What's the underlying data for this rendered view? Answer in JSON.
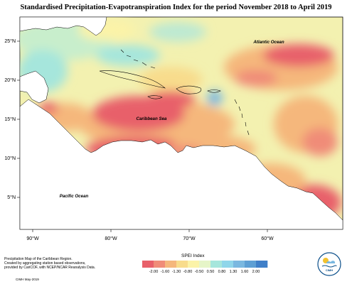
{
  "title": "Standardised Precipitation-Evapotranspiration Index for the period November 2018 to April 2019",
  "axes": {
    "longitude_ticks": [
      "90°W",
      "80°W",
      "70°W",
      "60°W"
    ],
    "latitude_ticks": [
      "25°N",
      "20°N",
      "15°N",
      "10°N",
      "5°N"
    ]
  },
  "ocean_labels": {
    "atlantic": "Atlantic Ocean",
    "caribbean": "Caribbean Sea",
    "pacific": "Pacific Ocean"
  },
  "legend": {
    "title": "SPEI Index",
    "ticks": [
      "-2.00",
      "-1.60",
      "-1.30",
      "-0.80",
      "-0.50",
      "0.50",
      "0.80",
      "1.30",
      "1.60",
      "2.00"
    ],
    "colors": [
      "#e8606a",
      "#f08c78",
      "#f5b77c",
      "#f8dc8c",
      "#fbf3a8",
      "#e6f5c8",
      "#a6e6dc",
      "#8fd6ea",
      "#7ab8e0",
      "#5d9fd4",
      "#3f7fc8"
    ]
  },
  "caption": {
    "lines": [
      "Precipitation Map of the Caribbean Region.",
      "Created by aggregating station based observations,",
      "provided by CariCOF, with NCEP/NCAR Reanalysis Data."
    ],
    "credit": "CIMH May-2019"
  },
  "logo": {
    "text": "CIMH"
  }
}
